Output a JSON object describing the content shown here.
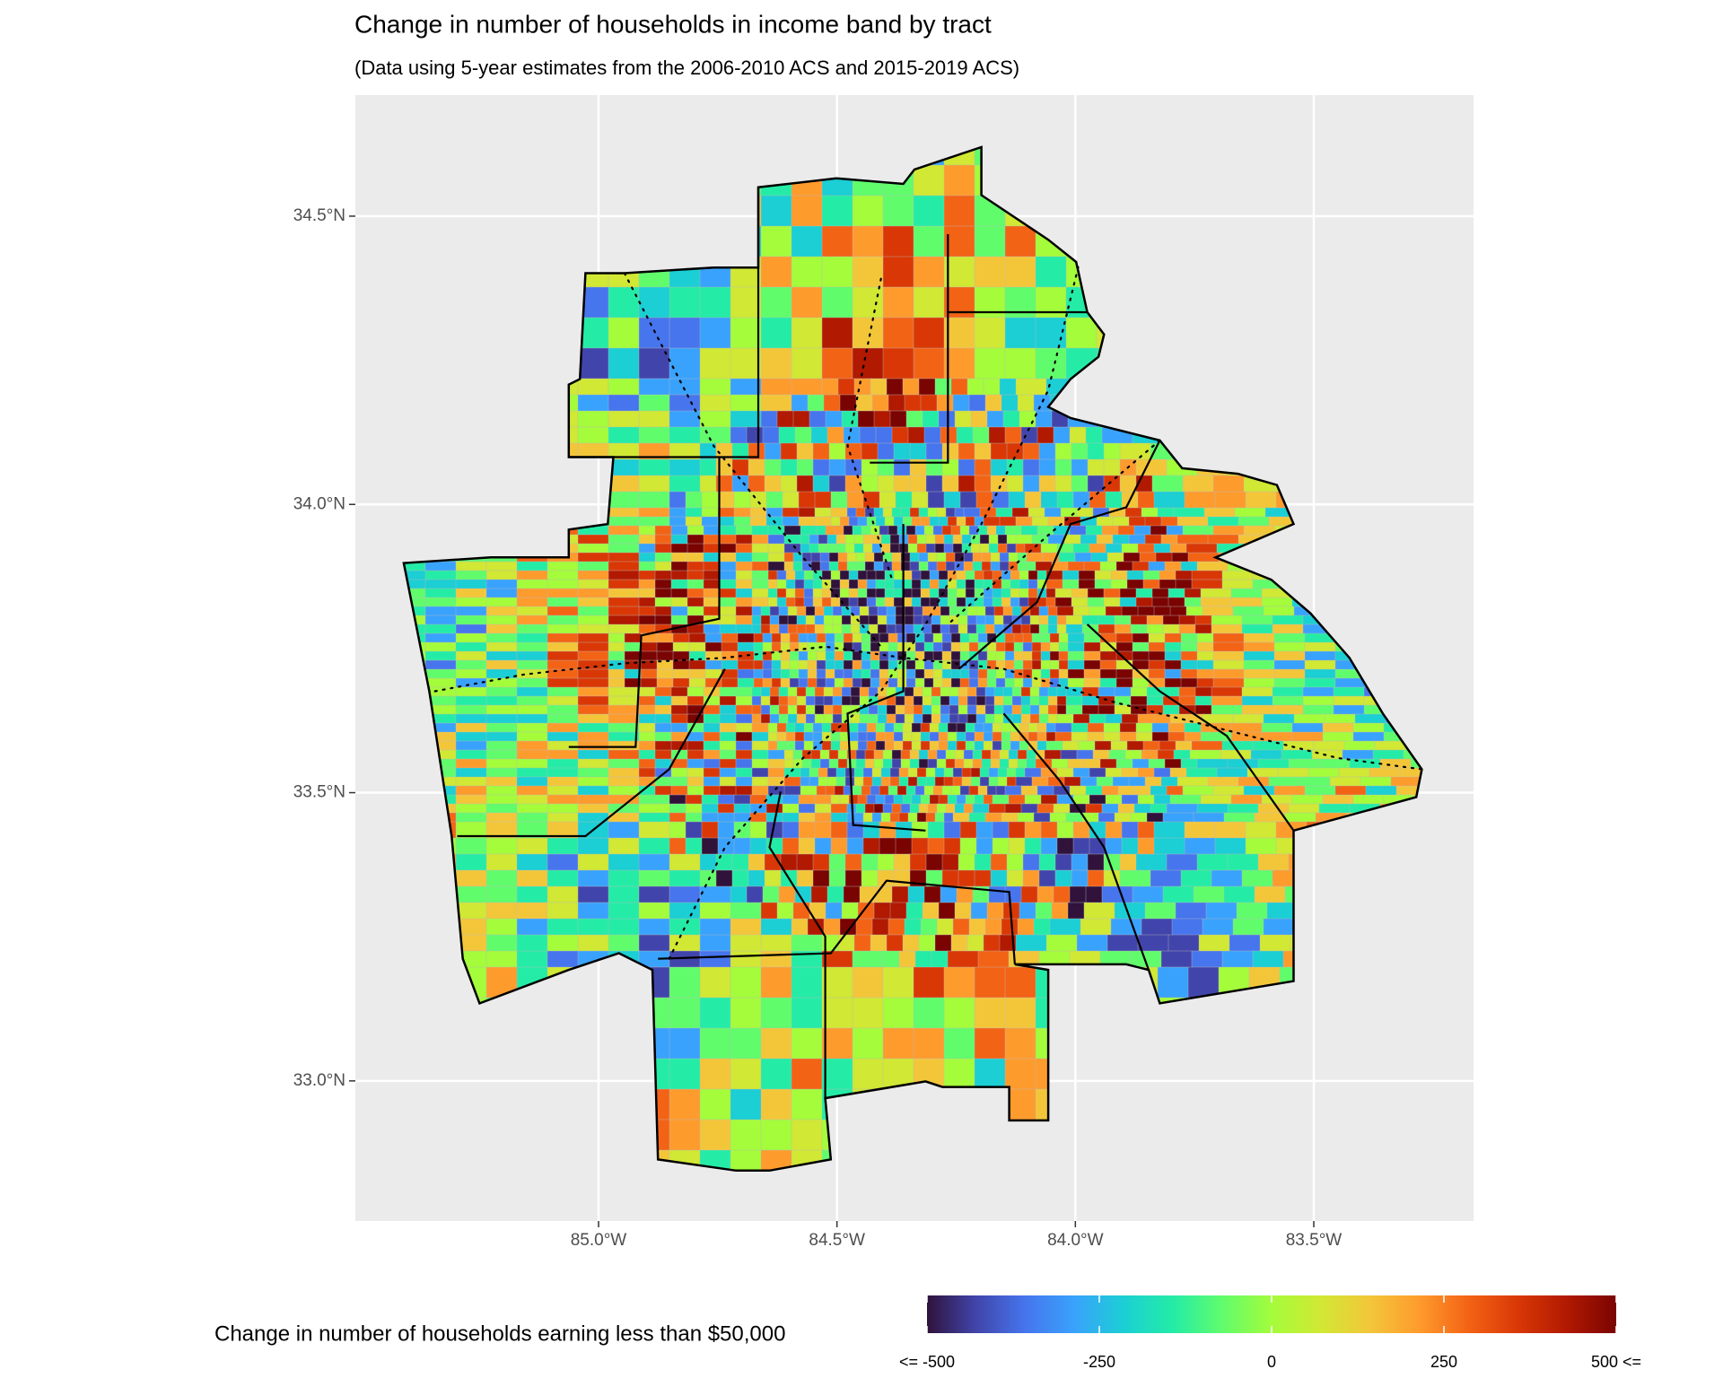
{
  "chart_data": {
    "type": "map",
    "title": "Change in number of households in income band by tract",
    "subtitle": "(Data using 5-year estimates from the 2006-2010 ACS and 2015-2019 ACS)",
    "xlim": [
      -85.51,
      -83.165
    ],
    "ylim": [
      32.757,
      34.71
    ],
    "xticks": [
      {
        "value": -85,
        "label": "85.0°W"
      },
      {
        "value": -84.5,
        "label": "84.5°W"
      },
      {
        "value": -84,
        "label": "84.0°W"
      },
      {
        "value": -83.5,
        "label": "83.5°W"
      }
    ],
    "yticks": [
      {
        "value": 33,
        "label": "33.0°N"
      },
      {
        "value": 33.5,
        "label": "33.5°N"
      },
      {
        "value": 34,
        "label": "34.0°N"
      },
      {
        "value": 34.5,
        "label": "34.5°N"
      }
    ],
    "grid": true,
    "legend": {
      "title": "Change in number of households earning less than $50,000",
      "range": [
        -500,
        500
      ],
      "ticks": [
        {
          "value": -500,
          "label": "<= -500"
        },
        -250,
        0,
        250,
        {
          "value": 500,
          "label": "500 <="
        }
      ],
      "colors": [
        "#30123b",
        "#4145ab",
        "#4675ed",
        "#39a2fc",
        "#1bcfd4",
        "#24eca6",
        "#61fc6c",
        "#a4fc3b",
        "#d1e834",
        "#f3c63a",
        "#fe9b2d",
        "#f36315",
        "#d93806",
        "#b11901",
        "#7a0402"
      ]
    }
  }
}
